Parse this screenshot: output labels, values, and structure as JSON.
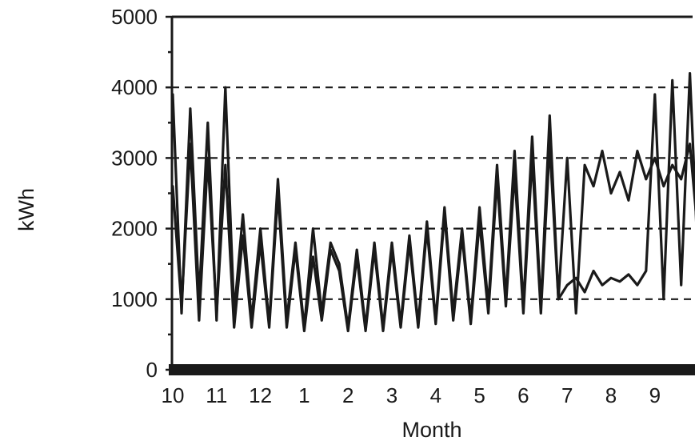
{
  "chart_data": {
    "type": "line",
    "title": "",
    "xlabel": "Month",
    "ylabel": "kWh",
    "ylim": [
      0,
      5000
    ],
    "yticks": [
      0,
      1000,
      2000,
      3000,
      4000,
      5000
    ],
    "y_minor_step": 500,
    "grid": "dashed horizontal lines at 1000, 2000, 3000, 4000",
    "xlim": [
      0,
      12
    ],
    "xticks": [
      {
        "label": "10",
        "x": 0
      },
      {
        "label": "11",
        "x": 1
      },
      {
        "label": "12",
        "x": 2
      },
      {
        "label": "1",
        "x": 3
      },
      {
        "label": "2",
        "x": 4
      },
      {
        "label": "3",
        "x": 5
      },
      {
        "label": "4",
        "x": 6
      },
      {
        "label": "5",
        "x": 7
      },
      {
        "label": "6",
        "x": 8
      },
      {
        "label": "7",
        "x": 9
      },
      {
        "label": "8",
        "x": 10
      },
      {
        "label": "9",
        "x": 11
      }
    ],
    "series": [
      {
        "x": [
          0.0,
          0.2,
          0.4,
          0.6,
          0.8,
          1.0,
          1.2,
          1.4,
          1.6,
          1.8,
          2.0,
          2.2,
          2.4,
          2.6,
          2.8,
          3.0,
          3.2,
          3.4,
          3.6,
          3.8,
          4.0,
          4.2,
          4.4,
          4.6,
          4.8,
          5.0,
          5.2,
          5.4,
          5.6,
          5.8,
          6.0,
          6.2,
          6.4,
          6.6,
          6.8,
          7.0,
          7.2,
          7.4,
          7.6,
          7.8,
          8.0,
          8.2,
          8.4,
          8.6,
          8.8,
          9.0,
          9.2,
          9.4,
          9.6,
          9.8,
          10.0,
          10.2,
          10.4,
          10.6,
          10.8,
          11.0,
          11.2,
          11.4,
          11.6,
          11.8,
          12.0
        ],
        "values": [
          3900,
          800,
          3700,
          1000,
          3500,
          700,
          4000,
          800,
          2200,
          700,
          2000,
          650,
          2700,
          700,
          1800,
          600,
          2000,
          800,
          1800,
          1500,
          600,
          1700,
          600,
          1800,
          600,
          1800,
          650,
          1900,
          650,
          2100,
          700,
          2300,
          800,
          2000,
          700,
          2300,
          900,
          2900,
          1000,
          3100,
          900,
          3300,
          900,
          3600,
          1000,
          3000,
          800,
          2900,
          2600,
          3100,
          2500,
          2800,
          2400,
          3100,
          2700,
          3000,
          2600,
          2900,
          2700,
          3200,
          1800
        ]
      },
      {
        "x": [
          0.0,
          0.2,
          0.4,
          0.6,
          0.8,
          1.0,
          1.2,
          1.4,
          1.6,
          1.8,
          2.0,
          2.2,
          2.4,
          2.6,
          2.8,
          3.0,
          3.2,
          3.4,
          3.6,
          3.8,
          4.0,
          4.2,
          4.4,
          4.6,
          4.8,
          5.0,
          5.2,
          5.4,
          5.6,
          5.8,
          6.0,
          6.2,
          6.4,
          6.6,
          6.8,
          7.0,
          7.2,
          7.4,
          7.6,
          7.8,
          8.0,
          8.2,
          8.4,
          8.6,
          8.8,
          9.0,
          9.2,
          9.4,
          9.6,
          9.8,
          10.0,
          10.2,
          10.4,
          10.6,
          10.8,
          11.0,
          11.2,
          11.4,
          11.6,
          11.8,
          12.0
        ],
        "values": [
          2600,
          900,
          3200,
          700,
          3000,
          800,
          2900,
          600,
          1900,
          600,
          1800,
          600,
          2500,
          600,
          1700,
          550,
          1600,
          700,
          1700,
          1400,
          550,
          1600,
          550,
          1700,
          550,
          1700,
          600,
          1800,
          600,
          2000,
          650,
          2200,
          700,
          1900,
          650,
          2100,
          800,
          2700,
          900,
          2800,
          800,
          3000,
          800,
          3200,
          1000,
          1200,
          1300,
          1100,
          1400,
          1200,
          1300,
          1250,
          1350,
          1200,
          1400,
          3900,
          1000,
          4100,
          1200,
          4200,
          1300
        ]
      }
    ]
  }
}
